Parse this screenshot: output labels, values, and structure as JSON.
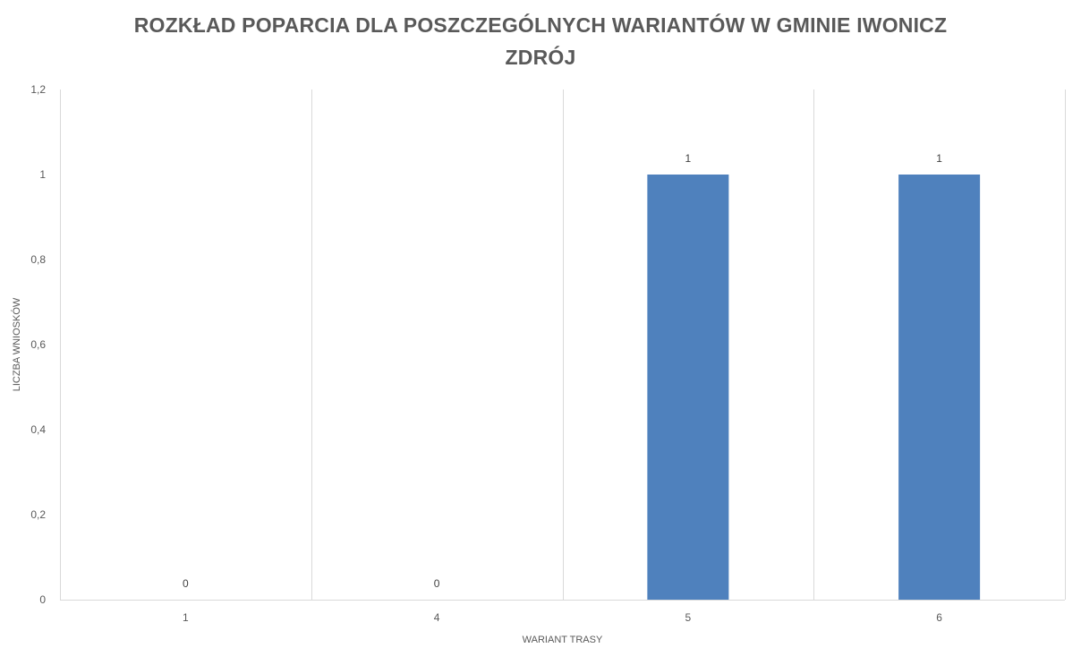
{
  "chart_data": {
    "type": "bar",
    "title_lines": [
      "ROZKŁAD POPARCIA DLA POSZCZEGÓLNYCH WARIANTÓW W GMINIE IWONICZ",
      "ZDRÓJ"
    ],
    "xlabel": "WARIANT TRASY",
    "ylabel": "LICZBA WNIOSKÓW",
    "categories": [
      "1",
      "4",
      "5",
      "6"
    ],
    "values": [
      0,
      0,
      1,
      1
    ],
    "data_labels": [
      "0",
      "0",
      "1",
      "1"
    ],
    "ylim": [
      0,
      1.2
    ],
    "yticks": [
      "0",
      "0,2",
      "0,4",
      "0,6",
      "0,8",
      "1",
      "1,2"
    ],
    "grid": "vertical separators between categories",
    "legend": "none",
    "bar_color": "#4f81bd",
    "text_color": "#595959",
    "grid_color": "#d9d9d9"
  }
}
